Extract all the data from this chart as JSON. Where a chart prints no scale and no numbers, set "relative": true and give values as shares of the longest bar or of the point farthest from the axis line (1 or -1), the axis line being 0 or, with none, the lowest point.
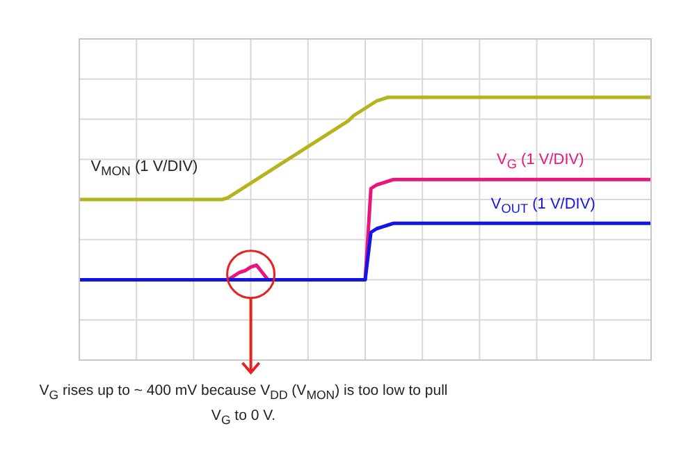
{
  "chart_data": {
    "type": "line",
    "relative": true,
    "grid": true,
    "categories": [
      null,
      null,
      null,
      null,
      null,
      null,
      null,
      null,
      null,
      null,
      null,
      null,
      null,
      null,
      null,
      null,
      null,
      null,
      null,
      null,
      null,
      null,
      null,
      null,
      null,
      null,
      null,
      null,
      null,
      null,
      null,
      null,
      null,
      null,
      null,
      null,
      null,
      null,
      null,
      null,
      null,
      null,
      null,
      null,
      null,
      null,
      null,
      null,
      null,
      null,
      null,
      null,
      null,
      null,
      null,
      null,
      null,
      null,
      null,
      null,
      null,
      null,
      null,
      null,
      null,
      null,
      null,
      null,
      null,
      null,
      null,
      null,
      null,
      null,
      null,
      null,
      null,
      null,
      null,
      null,
      null,
      null,
      null,
      null,
      null,
      null,
      null,
      null,
      null,
      null,
      null,
      null,
      null,
      null,
      null,
      null,
      null,
      null,
      null,
      null,
      null
    ],
    "series": [
      {
        "name": "V$_{MON}$ (1 V/DIV)",
        "color": "#b4b41e",
        "values": [
          0.44,
          0.44,
          0.44,
          0.44,
          0.44,
          0.44,
          0.44,
          0.44,
          0.44,
          0.44,
          0.44,
          0.44,
          0.44,
          0.44,
          0.44,
          0.44,
          0.44,
          0.44,
          0.44,
          0.44,
          0.44,
          0.44,
          0.44,
          0.44,
          0.44,
          0.44,
          0.45,
          0.47,
          0.49,
          0.51,
          0.53,
          0.55,
          0.57,
          0.59,
          0.61,
          0.63,
          0.65,
          0.67,
          0.69,
          0.71,
          0.73,
          0.75,
          0.77,
          0.79,
          0.81,
          0.83,
          0.85,
          0.87,
          0.9,
          0.92,
          0.94,
          0.96,
          0.98,
          0.99,
          1,
          1,
          1,
          1,
          1,
          1,
          1,
          1,
          1,
          1,
          1,
          1,
          1,
          1,
          1,
          1,
          1,
          1,
          1,
          1,
          1,
          1,
          1,
          1,
          1,
          1,
          1,
          1,
          1,
          1,
          1,
          1,
          1,
          1,
          1,
          1,
          1,
          1,
          1,
          1,
          1,
          1,
          1,
          1,
          1,
          1,
          1
        ]
      },
      {
        "name": "V$_{G}$ (1 V/DIV)",
        "color": "#e8157a",
        "values": [
          null,
          null,
          null,
          null,
          null,
          null,
          null,
          null,
          null,
          null,
          null,
          null,
          null,
          null,
          null,
          null,
          null,
          null,
          null,
          null,
          null,
          null,
          null,
          null,
          null,
          null,
          0,
          0.02,
          0.04,
          0.05,
          0.07,
          0.08,
          0.04,
          0,
          null,
          null,
          null,
          null,
          null,
          null,
          null,
          null,
          null,
          null,
          null,
          null,
          null,
          null,
          null,
          null,
          0,
          0.5,
          0.52,
          0.53,
          0.54,
          0.55,
          0.55,
          0.55,
          0.55,
          0.55,
          0.55,
          0.55,
          0.55,
          0.55,
          0.55,
          0.55,
          0.55,
          0.55,
          0.55,
          0.55,
          0.55,
          0.55,
          0.55,
          0.55,
          0.55,
          0.55,
          0.55,
          0.55,
          0.55,
          0.55,
          0.55,
          0.55,
          0.55,
          0.55,
          0.55,
          0.55,
          0.55,
          0.55,
          0.55,
          0.55,
          0.55,
          0.55,
          0.55,
          0.55,
          0.55,
          0.55,
          0.55,
          0.55,
          0.55,
          0.55,
          0.55
        ]
      },
      {
        "name": "V$_{OUT}$ (1 V/DIV)",
        "color": "#1414e6",
        "values": [
          0,
          0,
          0,
          0,
          0,
          0,
          0,
          0,
          0,
          0,
          0,
          0,
          0,
          0,
          0,
          0,
          0,
          0,
          0,
          0,
          0,
          0,
          0,
          0,
          0,
          0,
          0,
          0,
          0,
          0,
          0,
          0,
          0,
          0,
          0,
          0,
          0,
          0,
          0,
          0,
          0,
          0,
          0,
          0,
          0,
          0,
          0,
          0,
          0,
          0,
          0,
          0.26,
          0.28,
          0.29,
          0.3,
          0.31,
          0.31,
          0.31,
          0.31,
          0.31,
          0.31,
          0.31,
          0.31,
          0.31,
          0.31,
          0.31,
          0.31,
          0.31,
          0.31,
          0.31,
          0.31,
          0.31,
          0.31,
          0.31,
          0.31,
          0.31,
          0.31,
          0.31,
          0.31,
          0.31,
          0.31,
          0.31,
          0.31,
          0.31,
          0.31,
          0.31,
          0.31,
          0.31,
          0.31,
          0.31,
          0.31,
          0.31,
          0.31,
          0.31,
          0.31,
          0.31,
          0.31,
          0.31,
          0.31,
          0.31,
          0.31
        ]
      }
    ],
    "annotations": [
      "V$_{G}$ rises up to ~ 400 mV because V$_{DD}$ (V$_{MON}$) is too low to pull V$_{G}$ to 0 V."
    ]
  }
}
